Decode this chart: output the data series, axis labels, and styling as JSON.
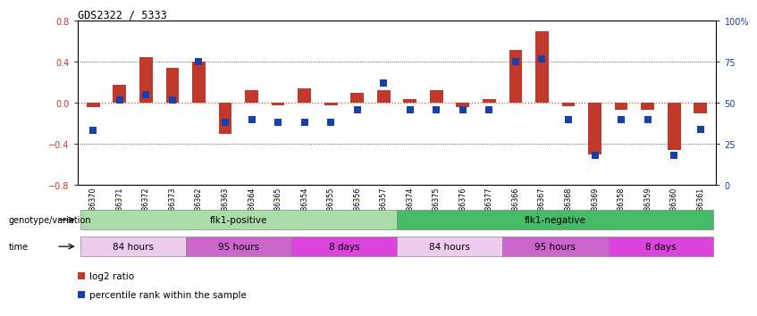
{
  "title": "GDS2322 / 5333",
  "samples": [
    "GSM86370",
    "GSM86371",
    "GSM86372",
    "GSM86373",
    "GSM86362",
    "GSM86363",
    "GSM86364",
    "GSM86365",
    "GSM86354",
    "GSM86355",
    "GSM86356",
    "GSM86357",
    "GSM86374",
    "GSM86375",
    "GSM86376",
    "GSM86377",
    "GSM86366",
    "GSM86367",
    "GSM86368",
    "GSM86369",
    "GSM86358",
    "GSM86359",
    "GSM86360",
    "GSM86361"
  ],
  "log2_ratio": [
    -0.04,
    0.18,
    0.45,
    0.34,
    0.4,
    -0.3,
    0.12,
    -0.02,
    0.14,
    -0.02,
    0.1,
    0.12,
    0.04,
    0.12,
    -0.04,
    0.04,
    0.52,
    0.7,
    -0.03,
    -0.5,
    -0.07,
    -0.07,
    -0.46,
    -0.1
  ],
  "percentile": [
    33,
    52,
    55,
    52,
    75,
    38,
    40,
    38,
    38,
    38,
    46,
    62,
    46,
    46,
    46,
    46,
    75,
    77,
    40,
    18,
    40,
    40,
    18,
    34
  ],
  "bar_color": "#c0392b",
  "dot_color": "#1a3faa",
  "ylim_left": [
    -0.8,
    0.8
  ],
  "ylim_right": [
    0,
    100
  ],
  "yticks_left": [
    -0.8,
    -0.4,
    0.0,
    0.4,
    0.8
  ],
  "yticks_right": [
    0,
    25,
    50,
    75,
    100
  ],
  "ytick_labels_right": [
    "0",
    "25",
    "50",
    "75",
    "100%"
  ],
  "zero_line_color": "#e74c3c",
  "dotted_line_color": "#333333",
  "groups_genotype": [
    {
      "label": "flk1-positive",
      "start": 0,
      "end": 11,
      "color": "#aaddaa"
    },
    {
      "label": "flk1-negative",
      "start": 12,
      "end": 23,
      "color": "#44bb66"
    }
  ],
  "groups_time": [
    {
      "label": "84 hours",
      "start": 0,
      "end": 3,
      "color": "#eeccee"
    },
    {
      "label": "95 hours",
      "start": 4,
      "end": 7,
      "color": "#cc66cc"
    },
    {
      "label": "8 days",
      "start": 8,
      "end": 11,
      "color": "#dd44dd"
    },
    {
      "label": "84 hours",
      "start": 12,
      "end": 15,
      "color": "#eeccee"
    },
    {
      "label": "95 hours",
      "start": 16,
      "end": 19,
      "color": "#cc66cc"
    },
    {
      "label": "8 days",
      "start": 20,
      "end": 23,
      "color": "#dd44dd"
    }
  ],
  "legend": [
    {
      "label": "log2 ratio",
      "color": "#c0392b"
    },
    {
      "label": "percentile rank within the sample",
      "color": "#1a3faa"
    }
  ],
  "bg_color": "#ffffff",
  "axis_right_color": "#1a3faa",
  "axis_left_color": "#c0392b",
  "genotype_label": "genotype/variation",
  "time_label": "time"
}
